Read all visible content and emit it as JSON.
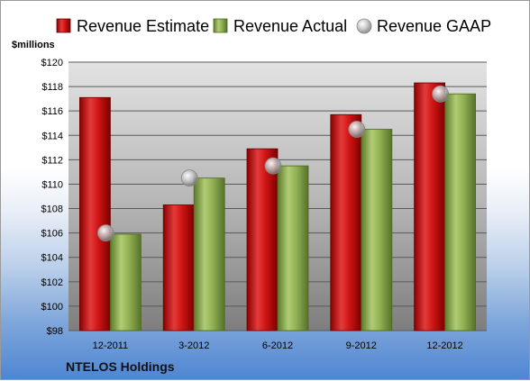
{
  "chart_data": {
    "type": "bar",
    "ylabel": "$millions",
    "ylim": [
      98,
      120
    ],
    "ystep": 2,
    "y_tick_prefix": "$",
    "grid": true,
    "legend_position": "top",
    "categories": [
      "12-2011",
      "3-2012",
      "6-2012",
      "9-2012",
      "12-2012"
    ],
    "series": [
      {
        "name": "Revenue Estimate",
        "kind": "bar",
        "color": "#c00000",
        "values": [
          117.1,
          108.3,
          112.9,
          115.7,
          118.3
        ]
      },
      {
        "name": "Revenue Actual",
        "kind": "bar",
        "color": "#8cae4c",
        "values": [
          105.9,
          110.5,
          111.5,
          114.5,
          117.4
        ]
      },
      {
        "name": "Revenue GAAP",
        "kind": "marker",
        "color": "#c0c0c0",
        "values": [
          106.0,
          110.5,
          111.5,
          114.5,
          117.4
        ]
      }
    ]
  },
  "company": "NTELOS Holdings"
}
